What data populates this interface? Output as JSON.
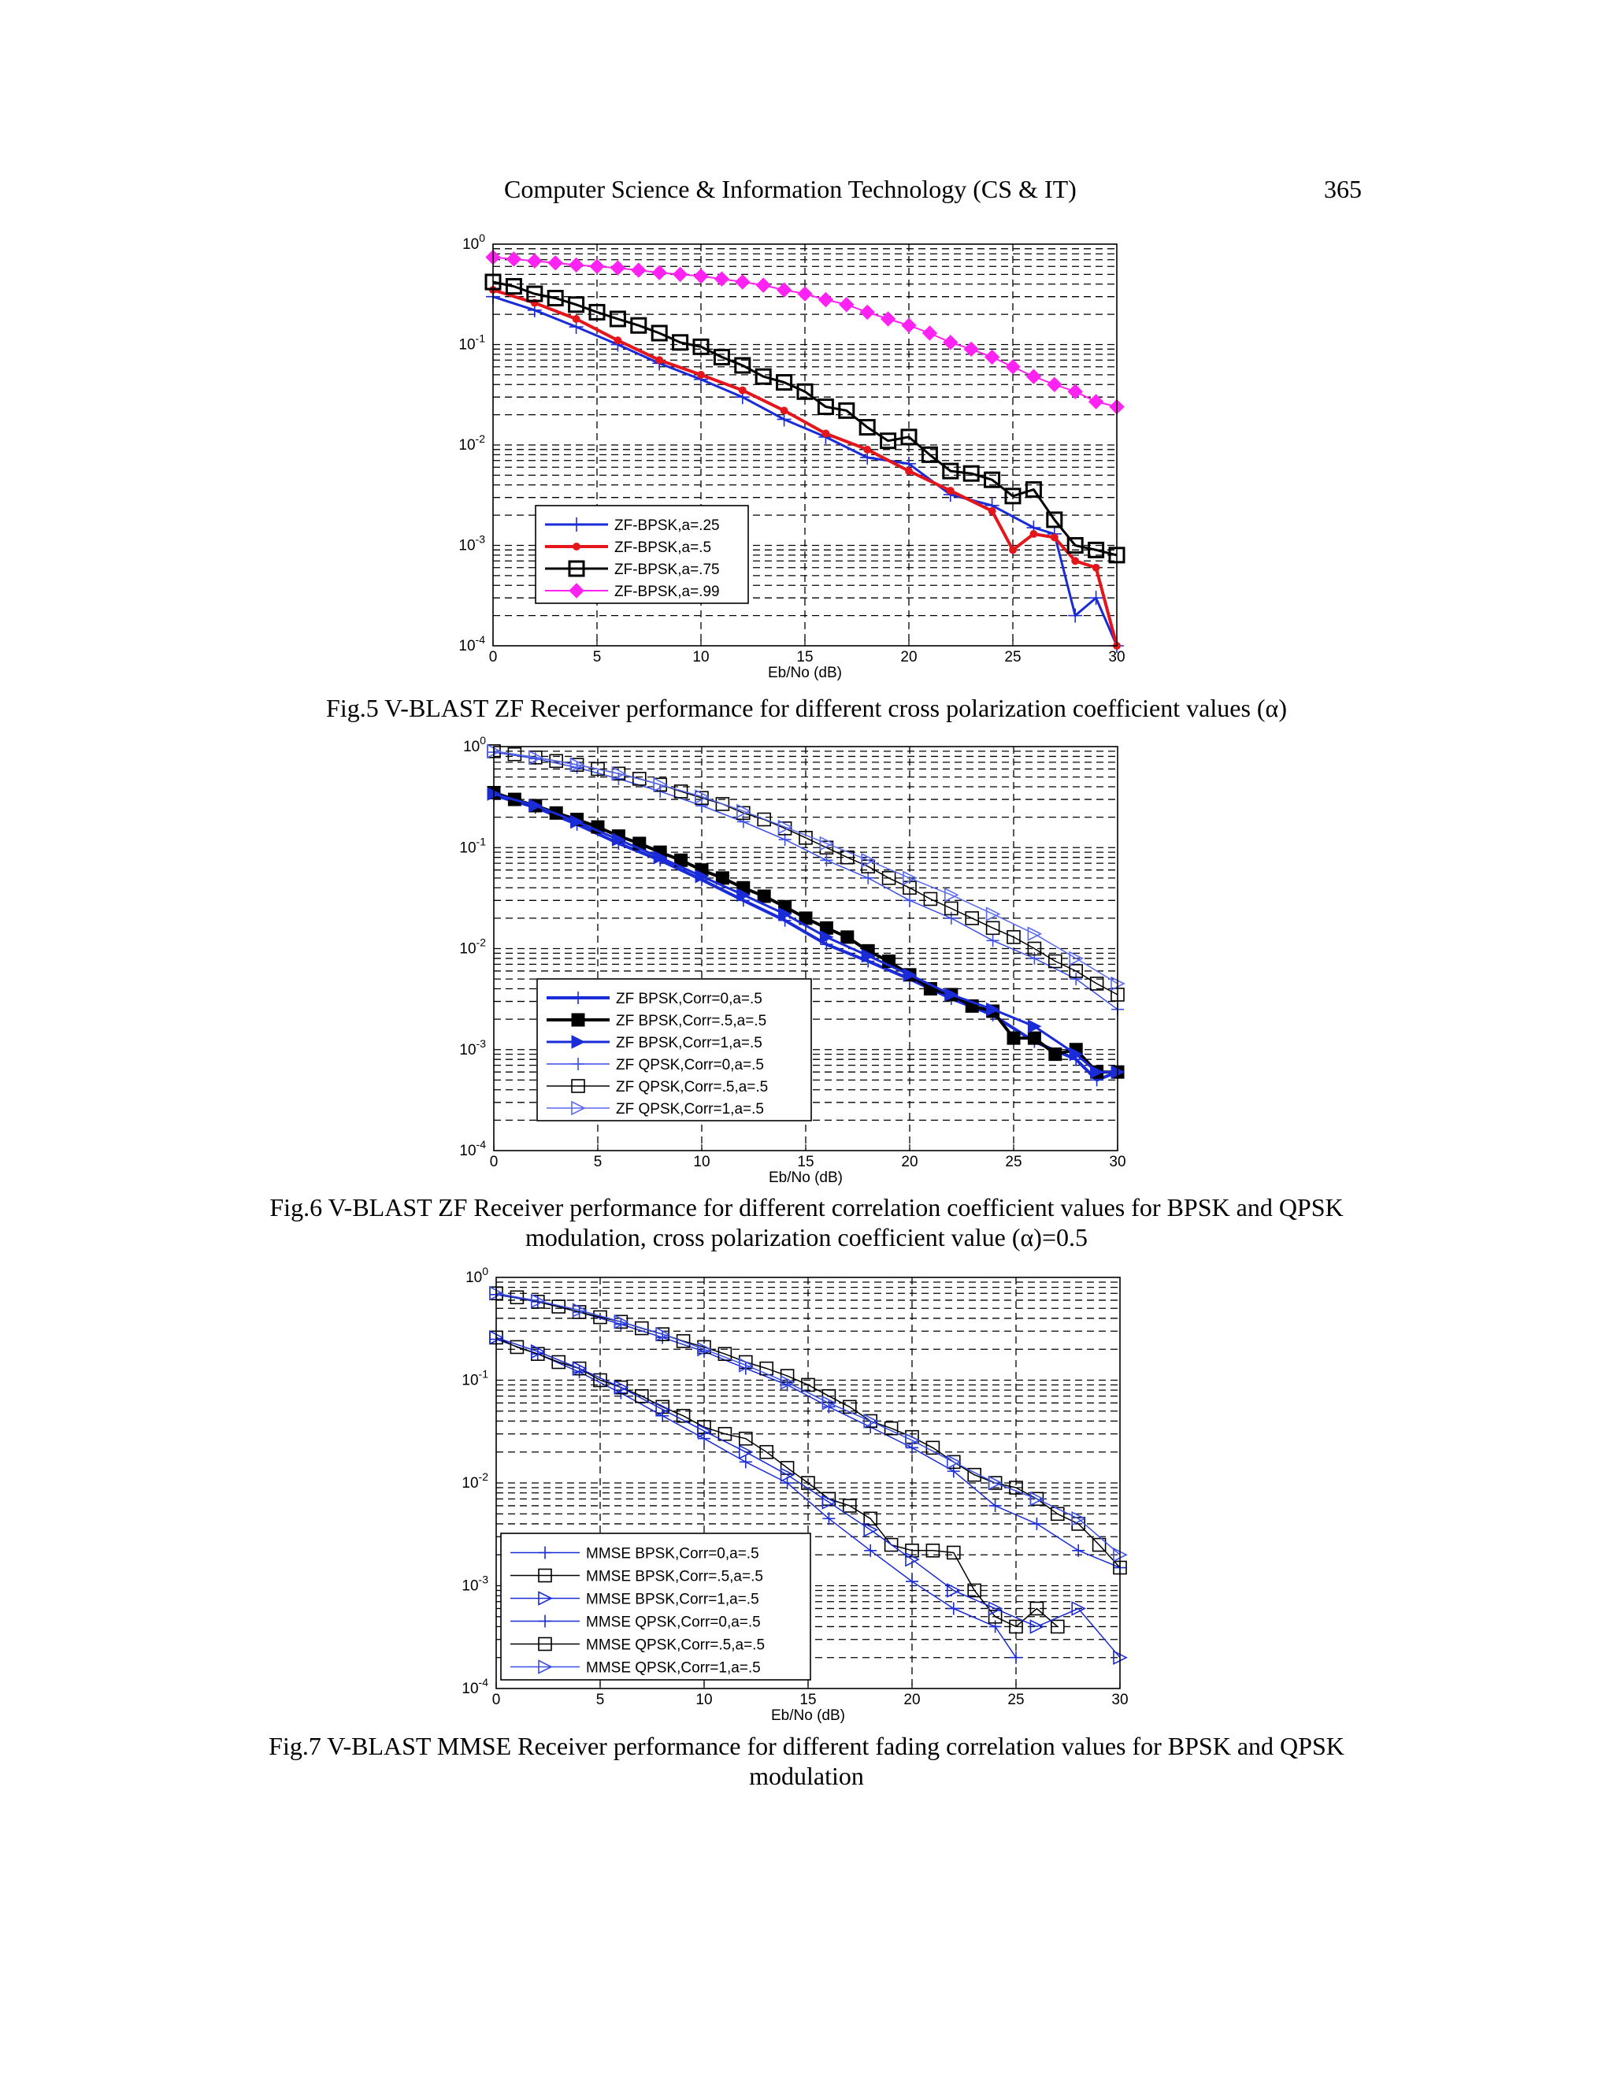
{
  "header": {
    "title": "Computer Science & Information Technology (CS & IT)",
    "page_number": "365"
  },
  "figures": [
    {
      "caption_lines": [
        "Fig.5 V-BLAST ZF Receiver performance for different cross polarization coefficient values (α)"
      ],
      "chart_data": {
        "type": "line",
        "xlabel": "Eb/No (dB)",
        "ylabel": "",
        "xlim": [
          0,
          30
        ],
        "ylim": [
          0.0001,
          1
        ],
        "yscale": "log",
        "xticks": [
          "0",
          "5",
          "10",
          "15",
          "20",
          "25",
          "30"
        ],
        "ytick_labels": [
          "10^0",
          "10^-1",
          "10^-2",
          "10^-3",
          "10^-4"
        ],
        "grid": true,
        "legend_position": "bottom-left",
        "series": [
          {
            "name": "ZF-BPSK,a=.25",
            "color": "#1a2bd8",
            "marker": "plus",
            "line_width": 3,
            "x": [
              0,
              2,
              4,
              6,
              8,
              10,
              12,
              14,
              16,
              18,
              20,
              22,
              24,
              26,
              27,
              28,
              29,
              30
            ],
            "y": [
              0.3,
              0.22,
              0.15,
              0.1,
              0.065,
              0.045,
              0.03,
              0.018,
              0.012,
              0.0075,
              0.0065,
              0.0032,
              0.0025,
              0.0015,
              0.0013,
              0.0002,
              0.0003,
              0.0001
            ]
          },
          {
            "name": "ZF-BPSK,a=.5",
            "color": "#e5161b",
            "marker": "dot",
            "line_width": 4,
            "x": [
              0,
              2,
              4,
              6,
              8,
              10,
              12,
              14,
              16,
              18,
              20,
              22,
              24,
              25,
              26,
              27,
              28,
              29,
              30
            ],
            "y": [
              0.35,
              0.26,
              0.18,
              0.11,
              0.07,
              0.05,
              0.035,
              0.022,
              0.013,
              0.009,
              0.0055,
              0.0035,
              0.0022,
              0.0009,
              0.0013,
              0.0012,
              0.0007,
              0.0006,
              0.0001
            ]
          },
          {
            "name": "ZF-BPSK,a=.75",
            "color": "#000000",
            "marker": "square",
            "line_width": 3,
            "x": [
              0,
              1,
              2,
              3,
              4,
              5,
              6,
              7,
              8,
              9,
              10,
              11,
              12,
              13,
              14,
              15,
              16,
              17,
              18,
              19,
              20,
              21,
              22,
              23,
              24,
              25,
              26,
              27,
              28,
              29,
              30
            ],
            "y": [
              0.42,
              0.38,
              0.32,
              0.29,
              0.25,
              0.21,
              0.18,
              0.155,
              0.13,
              0.105,
              0.095,
              0.075,
              0.062,
              0.048,
              0.042,
              0.034,
              0.024,
              0.022,
              0.015,
              0.011,
              0.012,
              0.008,
              0.0055,
              0.0052,
              0.0045,
              0.0031,
              0.0036,
              0.0018,
              0.001,
              0.0009,
              0.0008
            ]
          },
          {
            "name": "ZF-BPSK,a=.99",
            "color": "#ff22f2",
            "marker": "diamond",
            "line_width": 2,
            "x": [
              0,
              1,
              2,
              3,
              4,
              5,
              6,
              7,
              8,
              9,
              10,
              11,
              12,
              13,
              14,
              15,
              16,
              17,
              18,
              19,
              20,
              21,
              22,
              23,
              24,
              25,
              26,
              27,
              28,
              29,
              30
            ],
            "y": [
              0.74,
              0.71,
              0.68,
              0.65,
              0.62,
              0.6,
              0.58,
              0.55,
              0.52,
              0.5,
              0.48,
              0.45,
              0.42,
              0.39,
              0.35,
              0.32,
              0.28,
              0.25,
              0.21,
              0.18,
              0.155,
              0.13,
              0.105,
              0.09,
              0.075,
              0.06,
              0.048,
              0.04,
              0.034,
              0.027,
              0.024
            ]
          }
        ]
      }
    },
    {
      "caption_lines": [
        "Fig.6 V-BLAST ZF Receiver performance for different correlation coefficient values for BPSK and QPSK",
        "modulation, cross polarization coefficient value (α)=0.5"
      ],
      "chart_data": {
        "type": "line",
        "xlabel": "Eb/No (dB)",
        "ylabel": "",
        "xlim": [
          0,
          30
        ],
        "ylim": [
          0.0001,
          1
        ],
        "yscale": "log",
        "xticks": [
          "0",
          "5",
          "10",
          "15",
          "20",
          "25",
          "30"
        ],
        "ytick_labels": [
          "10^0",
          "10^-1",
          "10^-2",
          "10^-3",
          "10^-4"
        ],
        "grid": true,
        "legend_position": "bottom-left",
        "series": [
          {
            "name": "ZF BPSK,Corr=0,a=.5",
            "color": "#1a2bd8",
            "marker": "plus",
            "line_width": 4,
            "x": [
              0,
              2,
              4,
              6,
              8,
              10,
              12,
              14,
              16,
              18,
              20,
              22,
              24,
              26,
              28,
              29,
              30
            ],
            "y": [
              0.33,
              0.25,
              0.17,
              0.11,
              0.075,
              0.048,
              0.03,
              0.019,
              0.011,
              0.0075,
              0.005,
              0.0032,
              0.0022,
              0.0012,
              0.0008,
              0.0005,
              0.0006
            ]
          },
          {
            "name": "ZF BPSK,Corr=.5,a=.5",
            "color": "#000000",
            "marker": "filled-square",
            "line_width": 4,
            "x": [
              0,
              1,
              2,
              3,
              4,
              5,
              6,
              7,
              8,
              9,
              10,
              11,
              12,
              13,
              14,
              15,
              16,
              17,
              18,
              19,
              20,
              21,
              22,
              23,
              24,
              25,
              26,
              27,
              28,
              29,
              30
            ],
            "y": [
              0.35,
              0.3,
              0.26,
              0.22,
              0.19,
              0.16,
              0.13,
              0.11,
              0.09,
              0.075,
              0.06,
              0.05,
              0.04,
              0.033,
              0.026,
              0.02,
              0.016,
              0.013,
              0.0095,
              0.0075,
              0.0055,
              0.004,
              0.0035,
              0.0027,
              0.0024,
              0.0013,
              0.0013,
              0.0009,
              0.001,
              0.0006,
              0.0006
            ]
          },
          {
            "name": "ZF BPSK,Corr=1,a=.5",
            "color": "#1a2bd8",
            "marker": "triangle",
            "line_width": 3,
            "x": [
              0,
              2,
              4,
              6,
              8,
              10,
              12,
              14,
              16,
              18,
              20,
              22,
              24,
              26,
              28,
              29,
              30
            ],
            "y": [
              0.34,
              0.26,
              0.18,
              0.12,
              0.08,
              0.052,
              0.034,
              0.022,
              0.013,
              0.0085,
              0.0055,
              0.0035,
              0.0025,
              0.0017,
              0.0009,
              0.0006,
              0.0006
            ]
          },
          {
            "name": "ZF QPSK,Corr=0,a=.5",
            "color": "#3b4fe6",
            "marker": "plus",
            "line_width": 1.5,
            "x": [
              0,
              2,
              4,
              6,
              8,
              10,
              12,
              14,
              16,
              18,
              20,
              22,
              24,
              26,
              28,
              30
            ],
            "y": [
              0.88,
              0.76,
              0.62,
              0.48,
              0.36,
              0.26,
              0.18,
              0.12,
              0.075,
              0.05,
              0.03,
              0.02,
              0.012,
              0.008,
              0.005,
              0.0025
            ]
          },
          {
            "name": "ZF QPSK,Corr=.5,a=.5",
            "color": "#000000",
            "marker": "square",
            "line_width": 1.5,
            "x": [
              0,
              1,
              2,
              3,
              4,
              5,
              6,
              7,
              8,
              9,
              10,
              11,
              12,
              13,
              14,
              15,
              16,
              17,
              18,
              19,
              20,
              21,
              22,
              23,
              24,
              25,
              26,
              27,
              28,
              29,
              30
            ],
            "y": [
              0.9,
              0.84,
              0.78,
              0.72,
              0.66,
              0.6,
              0.54,
              0.48,
              0.42,
              0.36,
              0.31,
              0.27,
              0.22,
              0.19,
              0.155,
              0.125,
              0.1,
              0.08,
              0.065,
              0.05,
              0.04,
              0.031,
              0.025,
              0.02,
              0.016,
              0.013,
              0.01,
              0.0075,
              0.006,
              0.0045,
              0.0035
            ]
          },
          {
            "name": "ZF QPSK,Corr=1,a=.5",
            "color": "#5a6af0",
            "marker": "open-triangle",
            "line_width": 1.5,
            "x": [
              0,
              2,
              4,
              6,
              8,
              10,
              12,
              14,
              16,
              18,
              20,
              22,
              24,
              26,
              28,
              30
            ],
            "y": [
              0.9,
              0.78,
              0.66,
              0.54,
              0.42,
              0.32,
              0.23,
              0.16,
              0.11,
              0.075,
              0.05,
              0.034,
              0.022,
              0.014,
              0.008,
              0.0045
            ]
          }
        ]
      }
    },
    {
      "caption_lines": [
        "Fig.7 V-BLAST MMSE Receiver performance for different fading correlation values for BPSK and QPSK",
        "modulation"
      ],
      "chart_data": {
        "type": "line",
        "xlabel": "Eb/No (dB)",
        "ylabel": "",
        "xlim": [
          0,
          30
        ],
        "ylim": [
          0.0001,
          1
        ],
        "yscale": "log",
        "xticks": [
          "0",
          "5",
          "10",
          "15",
          "20",
          "25",
          "30"
        ],
        "ytick_labels": [
          "10^0",
          "10^-1",
          "10^-2",
          "10^-3",
          "10^-4"
        ],
        "grid": true,
        "legend_position": "bottom-left",
        "series": [
          {
            "name": "MMSE BPSK,Corr=0,a=.5",
            "color": "#1a2bd8",
            "marker": "plus",
            "line_width": 1.5,
            "x": [
              0,
              2,
              4,
              6,
              8,
              10,
              12,
              14,
              16,
              18,
              20,
              22,
              24,
              25
            ],
            "y": [
              0.25,
              0.18,
              0.12,
              0.075,
              0.045,
              0.027,
              0.016,
              0.01,
              0.0045,
              0.0022,
              0.0011,
              0.0006,
              0.0004,
              0.0002
            ]
          },
          {
            "name": "MMSE BPSK,Corr=.5,a=.5",
            "color": "#000000",
            "marker": "square",
            "line_width": 1.5,
            "x": [
              0,
              1,
              2,
              3,
              4,
              5,
              6,
              7,
              8,
              9,
              10,
              11,
              12,
              13,
              14,
              15,
              16,
              17,
              18,
              19,
              20,
              21,
              22,
              23,
              24,
              25,
              26,
              27
            ],
            "y": [
              0.26,
              0.21,
              0.18,
              0.15,
              0.13,
              0.1,
              0.085,
              0.07,
              0.055,
              0.045,
              0.035,
              0.03,
              0.027,
              0.02,
              0.014,
              0.01,
              0.007,
              0.006,
              0.0045,
              0.0025,
              0.0022,
              0.0022,
              0.0021,
              0.0009,
              0.0005,
              0.0004,
              0.0006,
              0.0004
            ]
          },
          {
            "name": "MMSE BPSK,Corr=1,a=.5",
            "color": "#1a2bd8",
            "marker": "open-triangle",
            "line_width": 1.5,
            "x": [
              0,
              2,
              4,
              6,
              8,
              10,
              12,
              14,
              16,
              18,
              20,
              22,
              24,
              26,
              28,
              30
            ],
            "y": [
              0.26,
              0.19,
              0.13,
              0.085,
              0.052,
              0.032,
              0.02,
              0.012,
              0.0065,
              0.0035,
              0.0018,
              0.0009,
              0.0006,
              0.0004,
              0.0006,
              0.0002
            ]
          },
          {
            "name": "MMSE QPSK,Corr=0,a=.5",
            "color": "#1a2bd8",
            "marker": "plus",
            "line_width": 1.5,
            "x": [
              0,
              2,
              4,
              6,
              8,
              10,
              12,
              14,
              16,
              18,
              20,
              22,
              24,
              26,
              28,
              30
            ],
            "y": [
              0.68,
              0.58,
              0.46,
              0.35,
              0.26,
              0.19,
              0.13,
              0.09,
              0.055,
              0.035,
              0.022,
              0.013,
              0.006,
              0.004,
              0.0022,
              0.0015
            ]
          },
          {
            "name": "MMSE QPSK,Corr=.5,a=.5",
            "color": "#000000",
            "marker": "square",
            "line_width": 1.5,
            "x": [
              0,
              1,
              2,
              3,
              4,
              5,
              6,
              7,
              8,
              9,
              10,
              11,
              12,
              13,
              14,
              15,
              16,
              17,
              18,
              19,
              20,
              21,
              22,
              23,
              24,
              25,
              26,
              27,
              28,
              29,
              30
            ],
            "y": [
              0.7,
              0.64,
              0.58,
              0.52,
              0.46,
              0.41,
              0.37,
              0.32,
              0.28,
              0.24,
              0.21,
              0.18,
              0.15,
              0.13,
              0.11,
              0.09,
              0.07,
              0.055,
              0.04,
              0.034,
              0.028,
              0.022,
              0.016,
              0.012,
              0.01,
              0.009,
              0.007,
              0.005,
              0.004,
              0.0025,
              0.0015
            ]
          },
          {
            "name": "MMSE QPSK,Corr=1,a=.5",
            "color": "#3b4fe6",
            "marker": "open-triangle",
            "line_width": 1.5,
            "x": [
              0,
              2,
              4,
              6,
              8,
              10,
              12,
              14,
              16,
              18,
              20,
              22,
              24,
              26,
              28,
              30
            ],
            "y": [
              0.7,
              0.59,
              0.48,
              0.37,
              0.28,
              0.2,
              0.14,
              0.095,
              0.06,
              0.04,
              0.026,
              0.016,
              0.01,
              0.007,
              0.0045,
              0.002
            ]
          }
        ]
      }
    }
  ]
}
